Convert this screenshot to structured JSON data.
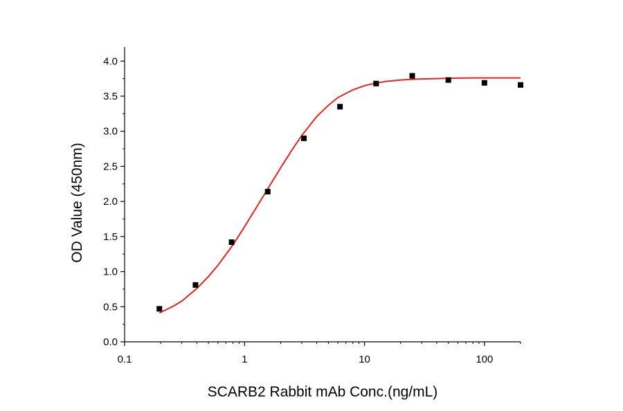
{
  "chart_data": {
    "type": "scatter",
    "xlabel": "SCARB2 Rabbit mAb Conc.(ng/mL)",
    "ylabel": "OD Value (450nm)",
    "xscale": "log",
    "xlim": [
      0.1,
      200
    ],
    "ylim": [
      0,
      4.2
    ],
    "xticks": [
      {
        "value": 0.1,
        "label": "0.1"
      },
      {
        "value": 1,
        "label": "1"
      },
      {
        "value": 10,
        "label": "10"
      },
      {
        "value": 100,
        "label": "100"
      }
    ],
    "yticks": [
      {
        "value": 0,
        "label": "0.0"
      },
      {
        "value": 0.5,
        "label": "0.5"
      },
      {
        "value": 1,
        "label": "1.0"
      },
      {
        "value": 1.5,
        "label": "1.5"
      },
      {
        "value": 2,
        "label": "2.0"
      },
      {
        "value": 2.5,
        "label": "2.5"
      },
      {
        "value": 3,
        "label": "3.0"
      },
      {
        "value": 3.5,
        "label": "3.5"
      },
      {
        "value": 4,
        "label": "4.0"
      }
    ],
    "grid": false,
    "series": [
      {
        "kind": "points",
        "marker": "square",
        "color": "#000000",
        "x": [
          0.195,
          0.39,
          0.78,
          1.56,
          3.125,
          6.25,
          12.5,
          25,
          50,
          100,
          200
        ],
        "y": [
          0.47,
          0.81,
          1.42,
          2.14,
          2.9,
          3.35,
          3.68,
          3.79,
          3.73,
          3.69,
          3.66
        ]
      },
      {
        "kind": "fit-curve",
        "color": "#e8231f",
        "x": [
          0.195,
          0.25,
          0.3,
          0.4,
          0.5,
          0.6,
          0.8,
          1,
          1.2,
          1.5,
          2,
          2.5,
          3,
          4,
          5,
          6,
          8,
          10,
          12,
          15,
          20,
          25,
          30,
          40,
          50,
          60,
          80,
          100,
          150,
          200
        ],
        "y": [
          0.41,
          0.5,
          0.58,
          0.76,
          0.93,
          1.09,
          1.38,
          1.64,
          1.86,
          2.13,
          2.48,
          2.74,
          2.94,
          3.21,
          3.37,
          3.48,
          3.59,
          3.65,
          3.68,
          3.71,
          3.73,
          3.74,
          3.745,
          3.75,
          3.755,
          3.757,
          3.76,
          3.76,
          3.76,
          3.76
        ]
      }
    ]
  }
}
